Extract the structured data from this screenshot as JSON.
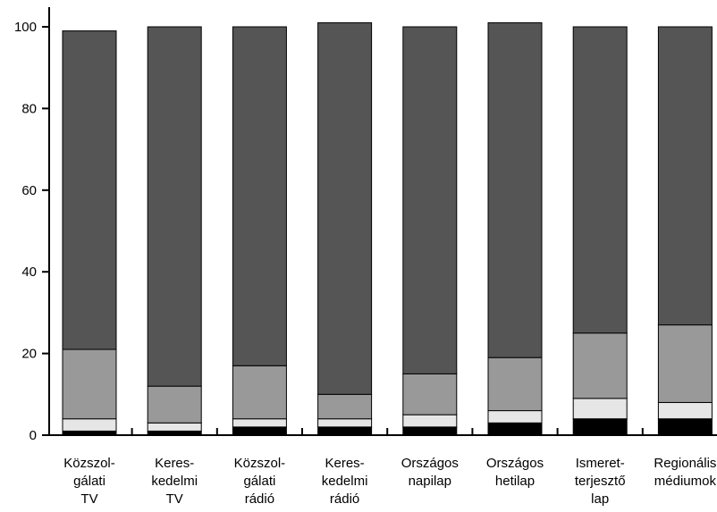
{
  "chart_data": {
    "type": "bar",
    "stacked": true,
    "categories": [
      [
        "Közszol-",
        "gálati",
        "TV"
      ],
      [
        "Keres-",
        "kedelmi",
        "TV"
      ],
      [
        "Közszol-",
        "gálati",
        "rádió"
      ],
      [
        "Keres-",
        "kedelmi",
        "rádió"
      ],
      [
        "Országos",
        "napilap"
      ],
      [
        "Országos",
        "hetilap"
      ],
      [
        "Ismeret-",
        "terjesztő",
        "lap"
      ],
      [
        "Regionális",
        "médiumok"
      ]
    ],
    "series": [
      {
        "values": [
          1,
          1,
          2,
          2,
          2,
          3,
          4,
          4
        ],
        "color": "#000000"
      },
      {
        "values": [
          3,
          2,
          2,
          2,
          3,
          3,
          5,
          4
        ],
        "color": "#e6e6e6"
      },
      {
        "values": [
          17,
          9,
          13,
          6,
          10,
          13,
          16,
          19
        ],
        "color": "#999999"
      },
      {
        "values": [
          78,
          88,
          83,
          91,
          85,
          82,
          75,
          73
        ],
        "color": "#555555"
      }
    ],
    "yticks": [
      0,
      20,
      40,
      60,
      80,
      100
    ],
    "ylim": [
      0,
      100
    ],
    "grid": false,
    "legend": "none"
  }
}
